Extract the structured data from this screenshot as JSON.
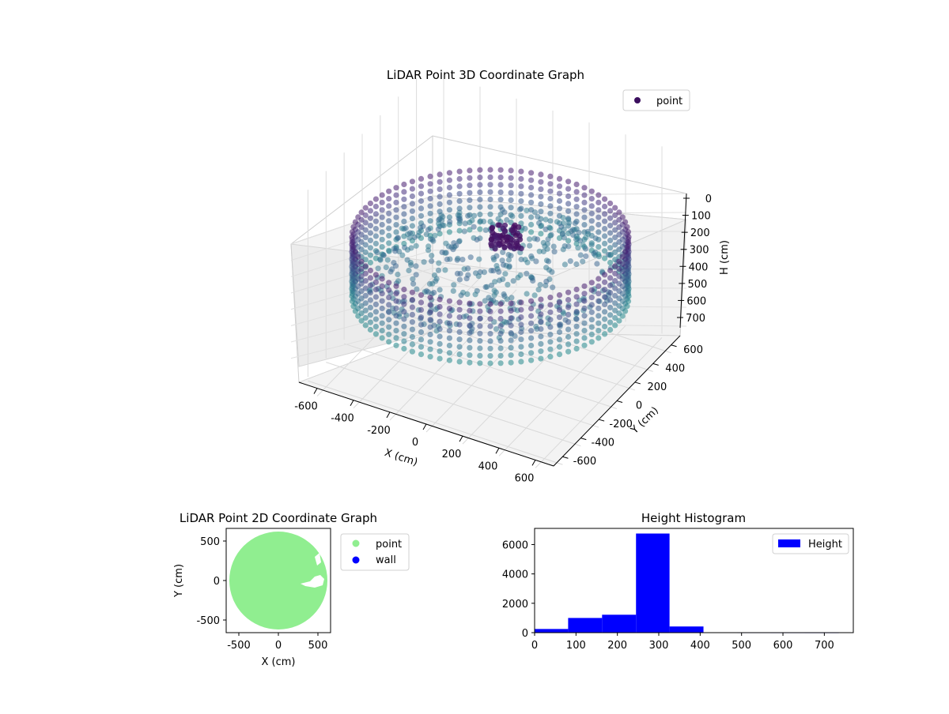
{
  "colors": {
    "point_dark": "#3b0f5e",
    "point_mid": "#38598c",
    "point_teal": "#2c7f8e",
    "ground": "#90ee90",
    "wall": "#0000ff",
    "hist": "#0000ff"
  },
  "chart_data": [
    {
      "type": "scatter",
      "projection": "3d",
      "title": "LiDAR Point 3D Coordinate Graph",
      "xlabel": "X (cm)",
      "ylabel": "Y (cm)",
      "zlabel": "H (cm)",
      "xlim": [
        -700,
        700
      ],
      "ylim": [
        -700,
        700
      ],
      "zlim": [
        750,
        0
      ],
      "z_inverted": true,
      "x_ticks": [
        "-600",
        "-400",
        "-200",
        "0",
        "200",
        "400",
        "600"
      ],
      "y_ticks": [
        "-600",
        "-400",
        "-200",
        "0",
        "200",
        "400",
        "600"
      ],
      "z_ticks": [
        "0",
        "100",
        "200",
        "300",
        "400",
        "500",
        "600",
        "700"
      ],
      "legend": [
        {
          "label": "point"
        }
      ],
      "legend_position": "top-right",
      "grid": true,
      "wall_radius": 600,
      "wall_height_range": [
        0,
        750
      ],
      "colormap": "viridis"
    },
    {
      "type": "scatter",
      "title": "LiDAR Point 2D Coordinate Graph",
      "xlabel": "X (cm)",
      "ylabel": "Y (cm)",
      "xlim": [
        -660,
        660
      ],
      "ylim": [
        -660,
        660
      ],
      "x_ticks": [
        "-500",
        "0",
        "500"
      ],
      "y_ticks": [
        "-500",
        "0",
        "500"
      ],
      "legend": [
        {
          "label": "point"
        },
        {
          "label": "wall"
        }
      ],
      "legend_position": "outside-right",
      "disc_radius": 620
    },
    {
      "type": "bar",
      "title": "Height Histogram",
      "xlabel": "",
      "ylabel": "",
      "xlim": [
        0,
        770
      ],
      "ylim": [
        0,
        7100
      ],
      "x_ticks": [
        "0",
        "100",
        "200",
        "300",
        "400",
        "500",
        "600",
        "700"
      ],
      "y_ticks": [
        "0",
        "2000",
        "4000",
        "6000"
      ],
      "legend": [
        {
          "label": "Height"
        }
      ],
      "legend_position": "top-right",
      "bins": [
        {
          "x0": 0,
          "x1": 81,
          "count": 250
        },
        {
          "x0": 81,
          "x1": 163,
          "count": 1000
        },
        {
          "x0": 163,
          "x1": 245,
          "count": 1220
        },
        {
          "x0": 245,
          "x1": 326,
          "count": 6750
        },
        {
          "x0": 326,
          "x1": 408,
          "count": 420
        },
        {
          "x0": 408,
          "x1": 490,
          "count": 8
        },
        {
          "x0": 490,
          "x1": 571,
          "count": 4
        },
        {
          "x0": 571,
          "x1": 653,
          "count": 3
        },
        {
          "x0": 653,
          "x1": 735,
          "count": 2
        }
      ]
    }
  ]
}
